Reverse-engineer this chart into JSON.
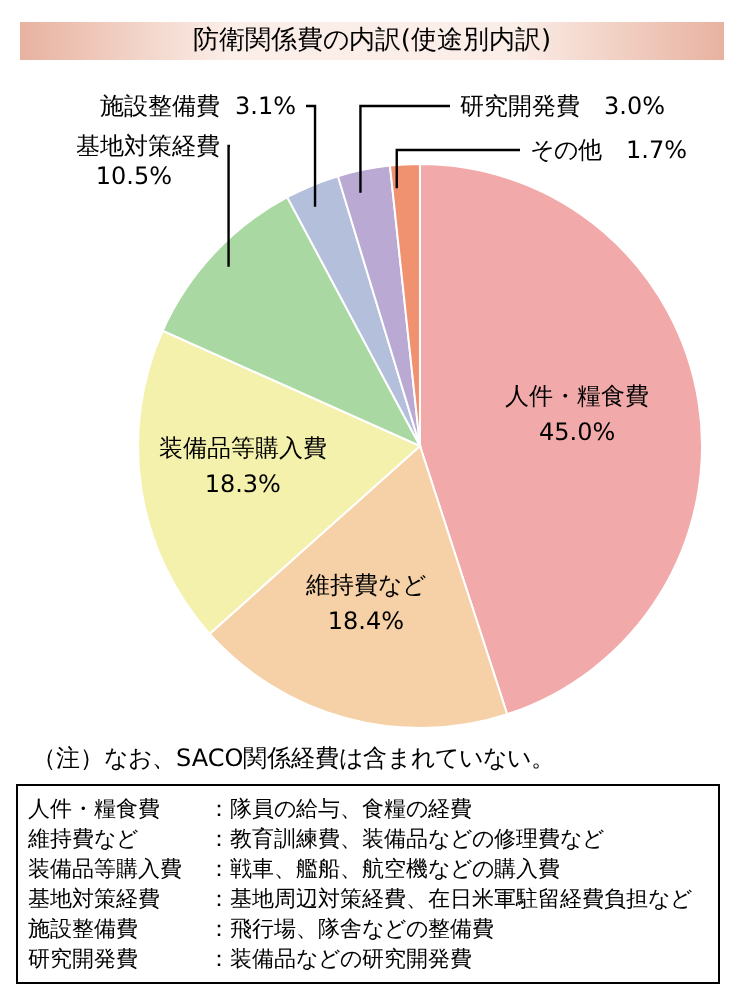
{
  "chart_data": {
    "type": "pie",
    "title": "防衛関係費の内訳(使途別内訳)",
    "categories": [
      "人件・糧食費",
      "維持費など",
      "装備品等購入費",
      "基地対策経費",
      "施設整備費",
      "研究開発費",
      "その他"
    ],
    "values": [
      45.0,
      18.4,
      18.3,
      10.5,
      3.1,
      3.0,
      1.7
    ],
    "value_labels": [
      "45.0%",
      "18.4%",
      "18.3%",
      "10.5%",
      "3.1%",
      "3.0%",
      "1.7%"
    ],
    "colors": [
      "#f2a9a9",
      "#f6d0a6",
      "#f4f1ac",
      "#aad8a2",
      "#b3bfdb",
      "#b9a9d3",
      "#f0916f"
    ],
    "legend": false,
    "annotations": [
      "（注）なお、SACO関係経費は含まれていない。",
      "人件・糧食費：隊員の給与、食糧の経費",
      "維持費など：教育訓練費、装備品などの修理費など",
      "装備品等購入費：戦車、艦船、航空機などの購入費",
      "基地対策経費：基地周辺対策経費、在日米軍駐留経費負担など",
      "施設整備費：飛行場、隊舎などの整備費",
      "研究開発費：装備品などの研究開発費"
    ]
  }
}
